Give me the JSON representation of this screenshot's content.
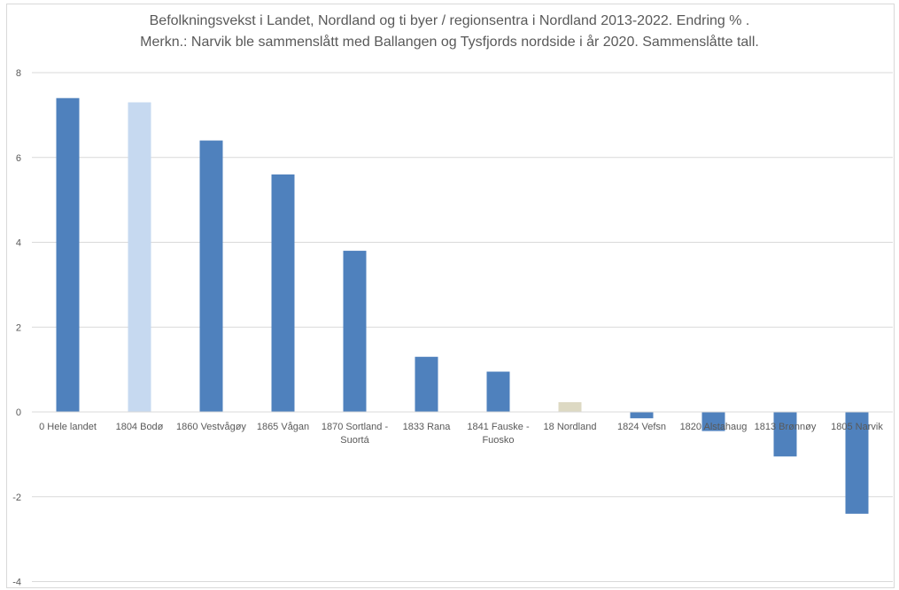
{
  "chart_data": {
    "type": "bar",
    "title": "Befolkningsvekst i Landet, Nordland og ti byer / regionsentra i Nordland 2013-2022. Endring % .",
    "subtitle": "Merkn.: Narvik ble sammenslått med Ballangen og Tysfjords nordside i år 2020.  Sammenslåtte tall.",
    "categories": [
      [
        "0 Hele landet"
      ],
      [
        "1804 Bodø"
      ],
      [
        "1860 Vestvågøy"
      ],
      [
        "1865 Vågan"
      ],
      [
        "1870 Sortland -",
        "Suortá"
      ],
      [
        "1833 Rana"
      ],
      [
        "1841 Fauske -",
        "Fuosko"
      ],
      [
        "18 Nordland"
      ],
      [
        "1824 Vefsn"
      ],
      [
        "1820 Alstahaug"
      ],
      [
        "1813 Brønnøy"
      ],
      [
        "1805 Narvik"
      ]
    ],
    "values": [
      7.4,
      7.3,
      6.4,
      5.6,
      3.8,
      1.3,
      0.95,
      0.23,
      -0.15,
      -0.45,
      -1.05,
      -2.4
    ],
    "bar_colors": [
      "#4f81bd",
      "#c6d9f0",
      "#4f81bd",
      "#4f81bd",
      "#4f81bd",
      "#4f81bd",
      "#4f81bd",
      "#ddd9c3",
      "#4f81bd",
      "#4f81bd",
      "#4f81bd",
      "#4f81bd"
    ],
    "ylim": [
      -4,
      8
    ],
    "yticks": [
      8,
      6,
      4,
      2,
      0,
      -2,
      -4
    ],
    "ytick_labels": [
      "8",
      "6",
      "4",
      "2",
      "0",
      "-2",
      "-4"
    ],
    "grid": true,
    "xlabel": "",
    "ylabel": ""
  }
}
